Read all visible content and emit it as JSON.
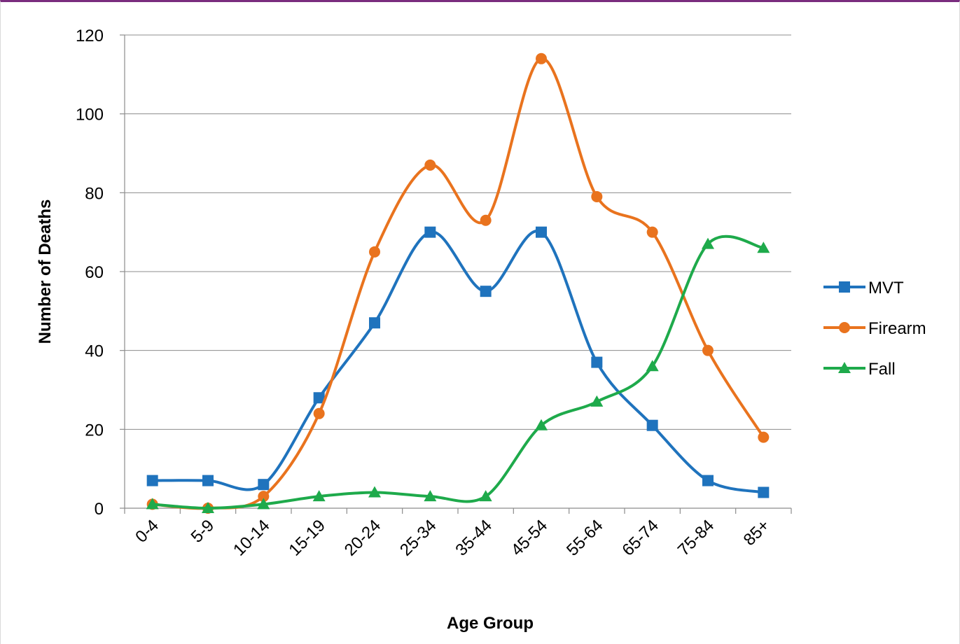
{
  "chart_data": {
    "type": "line",
    "xlabel": "Age Group",
    "ylabel": "Number of Deaths",
    "ylim": [
      0,
      120
    ],
    "yticks": [
      0,
      20,
      40,
      60,
      80,
      100,
      120
    ],
    "categories": [
      "0-4",
      "5-9",
      "10-14",
      "15-19",
      "20-24",
      "25-34",
      "35-44",
      "45-54",
      "55-64",
      "65-74",
      "75-84",
      "85+"
    ],
    "grid": "horizontal",
    "smooth": true,
    "legend_position": "right",
    "series": [
      {
        "name": "MVT",
        "color": "#1f73bd",
        "marker": "square",
        "values": [
          7,
          7,
          6,
          28,
          47,
          70,
          55,
          70,
          37,
          21,
          7,
          4
        ]
      },
      {
        "name": "Firearm",
        "color": "#e9731e",
        "marker": "circle",
        "values": [
          1,
          0,
          3,
          24,
          65,
          87,
          73,
          114,
          79,
          70,
          40,
          18
        ]
      },
      {
        "name": "Fall",
        "color": "#1eaa4b",
        "marker": "triangle",
        "values": [
          1,
          0,
          1,
          3,
          4,
          3,
          3,
          21,
          27,
          36,
          67,
          66
        ]
      }
    ]
  }
}
